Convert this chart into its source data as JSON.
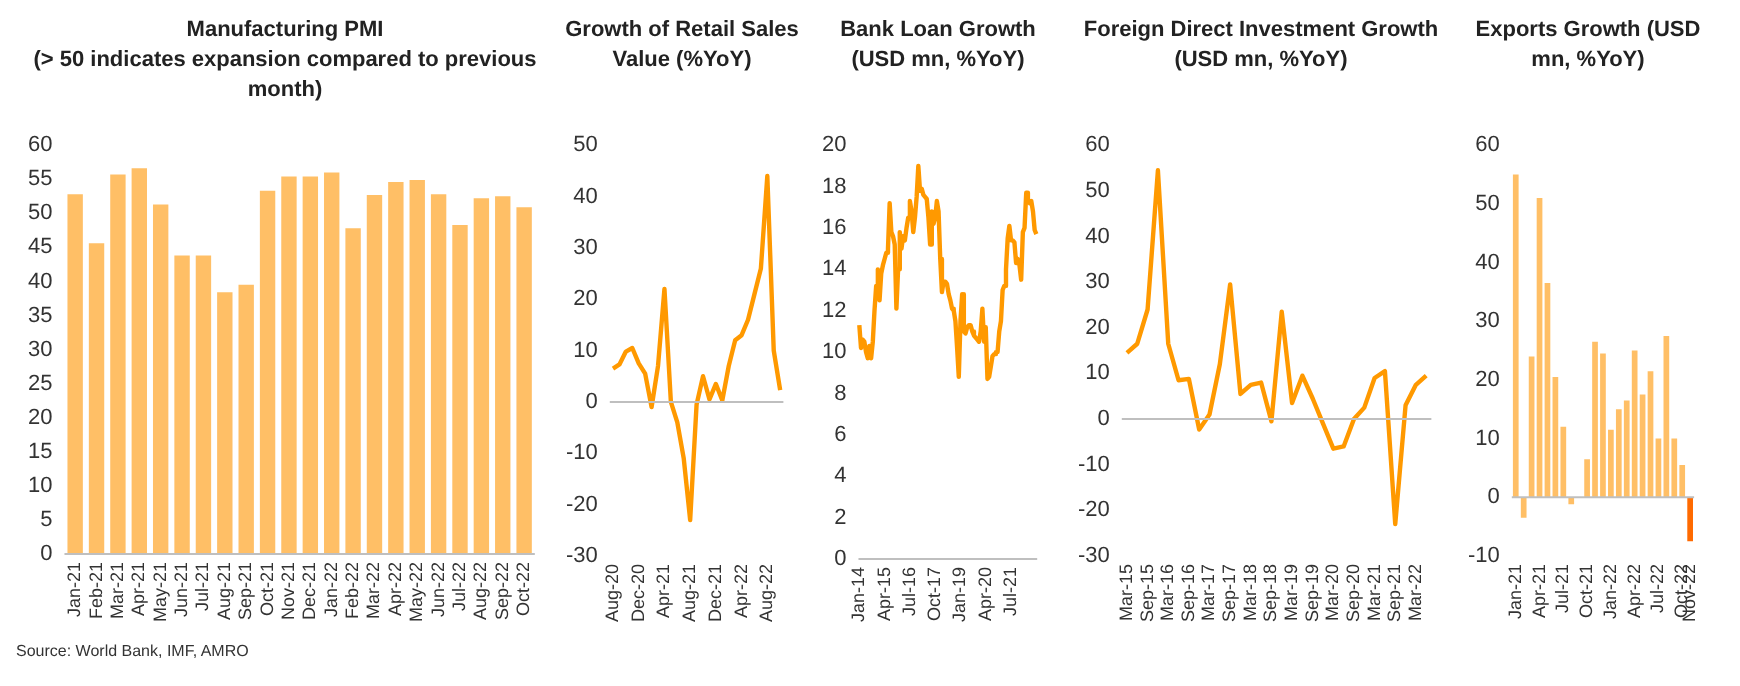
{
  "chart_data": [
    {
      "type": "bar",
      "title": "Manufacturing PMI",
      "subtitle": "(> 50 indicates expansion compared to previous month)",
      "categories": [
        "Jan-21",
        "Feb-21",
        "Mar-21",
        "Apr-21",
        "May-21",
        "Jun-21",
        "Jul-21",
        "Aug-21",
        "Sep-21",
        "Oct-21",
        "Nov-21",
        "Dec-21",
        "Jan-22",
        "Feb-22",
        "Mar-22",
        "Apr-22",
        "May-22",
        "Jun-22",
        "Jul-22",
        "Aug-22",
        "Sep-22",
        "Oct-22"
      ],
      "values": [
        52.8,
        45.6,
        55.7,
        56.6,
        51.3,
        43.8,
        43.8,
        38.4,
        39.5,
        53.3,
        55.4,
        55.4,
        56,
        47.8,
        52.7,
        54.6,
        54.9,
        52.8,
        48.3,
        52.2,
        52.5,
        50.9
      ],
      "color": "#ffbf66",
      "ylim": [
        0,
        60
      ],
      "yticks": [
        0,
        5,
        10,
        15,
        20,
        25,
        30,
        35,
        40,
        45,
        50,
        55,
        60
      ],
      "annotations": [
        "Source: World Bank, IMF, AMRO"
      ]
    },
    {
      "type": "line",
      "title": "Growth of Retail Sales Value  (%YoY)",
      "categories": [
        "Aug-20",
        null,
        null,
        null,
        "Dec-20",
        null,
        null,
        null,
        "Apr-21",
        null,
        null,
        null,
        "Aug-21",
        null,
        null,
        null,
        "Dec-21",
        null,
        null,
        null,
        "Apr-22",
        null,
        null,
        null,
        "Aug-22",
        null,
        null
      ],
      "values": [
        6.5,
        7.3,
        9.8,
        10.5,
        7.5,
        5.5,
        -1,
        7,
        22,
        0,
        -4,
        -11,
        -23,
        -0.5,
        5,
        0.5,
        3.5,
        0.3,
        7,
        12,
        13,
        16,
        21,
        26,
        44,
        10,
        2.3
      ],
      "color": "#ff9900",
      "ylim": [
        -30,
        50
      ],
      "yticks": [
        -30,
        -20,
        -10,
        0,
        10,
        20,
        30,
        40,
        50
      ]
    },
    {
      "type": "line",
      "title": "Bank Loan Growth (USD mn, %YoY)",
      "categories": [
        "Jan-14",
        null,
        null,
        null,
        null,
        null,
        null,
        null,
        null,
        null,
        null,
        null,
        null,
        null,
        null,
        "Apr-15",
        null,
        null,
        null,
        null,
        null,
        null,
        null,
        null,
        null,
        null,
        null,
        null,
        null,
        null,
        "Jul-16",
        null,
        null,
        null,
        null,
        null,
        null,
        null,
        null,
        null,
        null,
        null,
        null,
        null,
        null,
        "Oct-17",
        null,
        null,
        null,
        null,
        null,
        null,
        null,
        null,
        null,
        null,
        null,
        null,
        null,
        null,
        "Jan-19",
        null,
        null,
        null,
        null,
        null,
        null,
        null,
        null,
        null,
        null,
        null,
        null,
        null,
        null,
        "Apr-20",
        null,
        null,
        null,
        null,
        null,
        null,
        null,
        null,
        null,
        null,
        null,
        null,
        null,
        null,
        "Jul-21",
        null,
        null,
        null,
        null,
        null,
        null,
        null,
        null,
        null,
        null,
        null,
        null,
        null,
        null,
        null
      ],
      "values": [
        11.3,
        10.2,
        10.6,
        10.5,
        10.0,
        9.7,
        10.3,
        9.7,
        10.5,
        12.0,
        13.2,
        14.0,
        12.5,
        13.8,
        14.2,
        14.5,
        14.8,
        15.0,
        17.2,
        15.8,
        15.6,
        15.2,
        12.1,
        14.0,
        15.8,
        15.0,
        15.6,
        15.4,
        16.0,
        16.5,
        17.3,
        16.8,
        15.8,
        16.5,
        17.5,
        19.0,
        17.8,
        17.9,
        17.6,
        17.5,
        17.4,
        16.5,
        15.2,
        16.8,
        16.2,
        16.5,
        17.3,
        16.8,
        14.5,
        12.9,
        13.4,
        13.4,
        13.3,
        12.8,
        12.5,
        12.1,
        12.0,
        11.5,
        10.2,
        8.8,
        11.5,
        12.8,
        11.0,
        10.9,
        11.2,
        11.3,
        11.3,
        11.0,
        10.8,
        10.7,
        10.6,
        10.5,
        11.0,
        12.1,
        10.5,
        11.2,
        8.7,
        8.8,
        9.3,
        9.8,
        9.9,
        10.0,
        10.0,
        11.0,
        11.5,
        13.0,
        13.2,
        14.0,
        15.5,
        16.1,
        15.4,
        15.4,
        15.3,
        14.3,
        14.5,
        14.2,
        13.5,
        15.8,
        16.0,
        17.7,
        17.3,
        17.2,
        17.3,
        16.8,
        15.9,
        15.7
      ],
      "color": "#ff9900",
      "ylim": [
        0,
        20
      ],
      "yticks": [
        0,
        2,
        4,
        6,
        8,
        10,
        12,
        14,
        16,
        18,
        20
      ]
    },
    {
      "type": "line",
      "title": "Foreign Direct Investment Growth (USD mn, %YoY)",
      "categories": [
        "Mar-15",
        null,
        "Sep-15",
        null,
        "Mar-16",
        null,
        "Sep-16",
        null,
        "Mar-17",
        null,
        "Sep-17",
        null,
        "Mar-18",
        null,
        "Sep-18",
        null,
        "Mar-19",
        null,
        "Sep-19",
        null,
        "Mar-20",
        null,
        "Sep-20",
        null,
        "Mar-21",
        null,
        "Sep-21",
        null,
        "Mar-22",
        null
      ],
      "values": [
        14.5,
        16.5,
        24,
        54.5,
        16.5,
        8.5,
        8.8,
        -2.3,
        1,
        12,
        29.5,
        5.5,
        7.5,
        8,
        -0.5,
        23.5,
        3.5,
        9.5,
        4.5,
        -1,
        -6.5,
        -6,
        0,
        2.5,
        9,
        10.5,
        -23,
        3,
        7.5,
        9.5
      ],
      "color": "#ff9900",
      "ylim": [
        -30,
        60
      ],
      "yticks": [
        -30,
        -20,
        -10,
        0,
        10,
        20,
        30,
        40,
        50,
        60
      ]
    },
    {
      "type": "bar",
      "title": "Exports Growth (USD mn, %YoY)",
      "categories": [
        "Jan-21",
        null,
        null,
        "Apr-21",
        null,
        null,
        "Jul-21",
        null,
        null,
        "Oct-21",
        null,
        null,
        "Jan-22",
        null,
        null,
        "Apr-22",
        null,
        null,
        "Jul-22",
        null,
        null,
        "Oct-22",
        "Nov-22"
      ],
      "values": [
        55,
        -3.5,
        24,
        51,
        36.5,
        20.5,
        12,
        -1.2,
        null,
        6.5,
        26.5,
        24.5,
        11.5,
        15,
        16.5,
        25,
        17.5,
        21.5,
        10,
        27.5,
        10,
        5.5,
        -7.5
      ],
      "colors": [
        "#ffbf66",
        "#ffbf66",
        "#ffbf66",
        "#ffbf66",
        "#ffbf66",
        "#ffbf66",
        "#ffbf66",
        "#ffbf66",
        "#ffbf66",
        "#ffbf66",
        "#ffbf66",
        "#ffbf66",
        "#ffbf66",
        "#ffbf66",
        "#ffbf66",
        "#ffbf66",
        "#ffbf66",
        "#ffbf66",
        "#ffbf66",
        "#ffbf66",
        "#ffbf66",
        "#ffbf66",
        "#ff6a00"
      ],
      "ylim": [
        -10,
        60
      ],
      "yticks": [
        -10,
        0,
        10,
        20,
        30,
        40,
        50,
        60
      ]
    }
  ]
}
